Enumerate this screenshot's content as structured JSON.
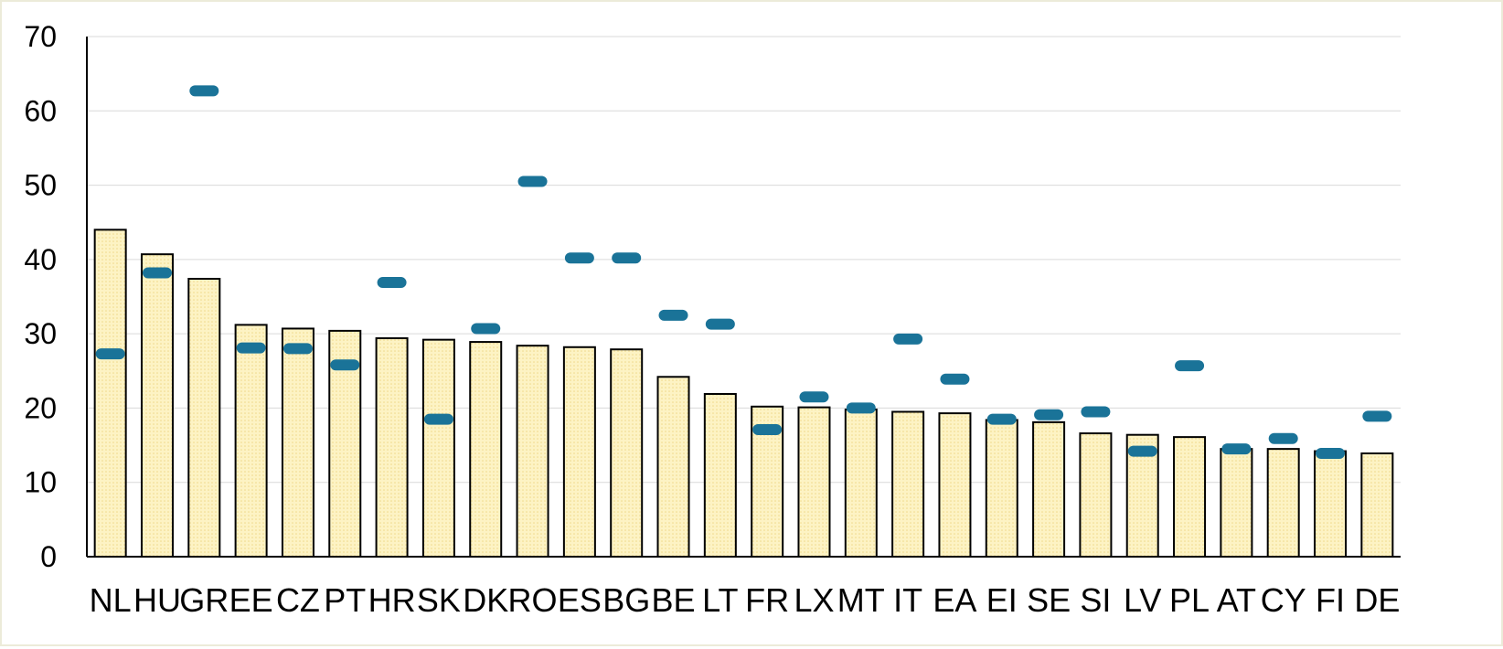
{
  "chart_data": {
    "type": "bar",
    "title": "",
    "xlabel": "",
    "ylabel": "",
    "ylim": [
      0,
      70
    ],
    "yticks": [
      0,
      10,
      20,
      30,
      40,
      50,
      60,
      70
    ],
    "grid": true,
    "legend": "none",
    "categories": [
      "NL",
      "HU",
      "GR",
      "EE",
      "CZ",
      "PT",
      "HR",
      "SK",
      "DK",
      "RO",
      "ES",
      "BG",
      "BE",
      "LT",
      "FR",
      "LX",
      "MT",
      "IT",
      "EA",
      "EI",
      "SE",
      "SI",
      "LV",
      "PL",
      "AT",
      "CY",
      "FI",
      "DE"
    ],
    "series": [
      {
        "mark": "bar",
        "values": [
          44.0,
          40.7,
          37.4,
          31.2,
          30.7,
          30.4,
          29.4,
          29.2,
          28.9,
          28.4,
          28.2,
          27.9,
          24.2,
          21.9,
          20.2,
          20.1,
          19.8,
          19.5,
          19.3,
          18.4,
          18.1,
          16.6,
          16.4,
          16.1,
          14.5,
          14.5,
          14.2,
          13.9
        ]
      },
      {
        "mark": "dash",
        "values": [
          27.3,
          38.2,
          62.7,
          28.1,
          28.0,
          25.8,
          36.9,
          18.5,
          30.7,
          50.5,
          40.2,
          40.2,
          32.5,
          31.3,
          17.1,
          21.5,
          20.0,
          29.3,
          23.9,
          18.5,
          19.1,
          19.5,
          14.2,
          25.7,
          14.5,
          15.9,
          13.9,
          18.9
        ]
      }
    ],
    "colors": {
      "bar_fill": "#fdf3c4",
      "bar_dots": "#f0d98a",
      "bar_stroke": "#000000",
      "dash": "#1a7398",
      "grid": "#d9d9d9",
      "axis": "#000000"
    }
  }
}
